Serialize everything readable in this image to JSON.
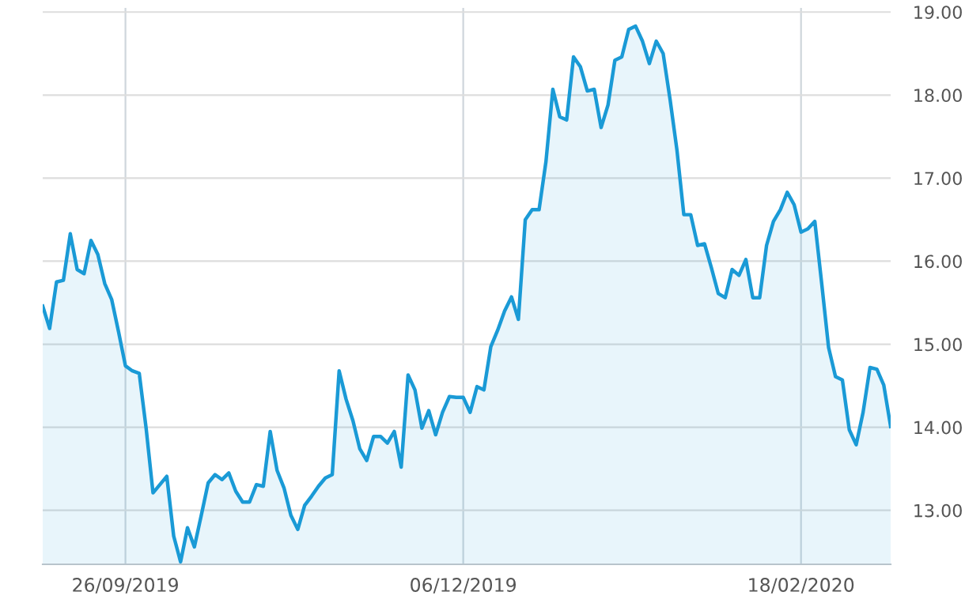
{
  "chart_data": {
    "type": "area",
    "categories": [
      null,
      null,
      null,
      null,
      null,
      null,
      null,
      null,
      null,
      null,
      null,
      null,
      "26/09/2019",
      null,
      null,
      null,
      null,
      null,
      null,
      null,
      null,
      null,
      null,
      null,
      null,
      null,
      null,
      null,
      null,
      null,
      null,
      null,
      null,
      null,
      null,
      null,
      null,
      null,
      null,
      null,
      null,
      null,
      null,
      null,
      null,
      null,
      null,
      null,
      null,
      null,
      null,
      null,
      null,
      null,
      null,
      null,
      null,
      null,
      null,
      null,
      null,
      "06/12/2019",
      null,
      null,
      null,
      null,
      null,
      null,
      null,
      null,
      null,
      null,
      null,
      null,
      null,
      null,
      null,
      null,
      null,
      null,
      null,
      null,
      null,
      null,
      null,
      null,
      null,
      null,
      null,
      null,
      null,
      null,
      null,
      null,
      null,
      null,
      null,
      null,
      null,
      null,
      null,
      null,
      null,
      null,
      null,
      null,
      null,
      null,
      null,
      null,
      "18/02/2020",
      null,
      null,
      null,
      null,
      null,
      null,
      null,
      null,
      null,
      null,
      null,
      null,
      null
    ],
    "series": [
      {
        "color": "#1a9ad6",
        "values": [
          15.46,
          15.19,
          15.75,
          15.77,
          16.33,
          15.9,
          15.85,
          16.25,
          16.08,
          15.73,
          15.54,
          15.15,
          14.74,
          14.68,
          14.65,
          13.99,
          13.21,
          13.31,
          13.41,
          12.69,
          12.38,
          12.79,
          12.56,
          12.94,
          13.33,
          13.43,
          13.37,
          13.45,
          13.23,
          13.1,
          13.1,
          13.31,
          13.29,
          13.95,
          13.48,
          13.27,
          12.94,
          12.77,
          13.06,
          13.17,
          13.29,
          13.39,
          13.43,
          14.68,
          14.34,
          14.08,
          13.74,
          13.6,
          13.89,
          13.89,
          13.81,
          13.95,
          13.52,
          14.63,
          14.45,
          13.99,
          14.2,
          13.91,
          14.18,
          14.37,
          14.36,
          14.36,
          14.18,
          14.49,
          14.45,
          14.97,
          15.17,
          15.4,
          15.57,
          15.3,
          16.5,
          16.62,
          16.62,
          17.2,
          18.07,
          17.74,
          17.7,
          18.46,
          18.34,
          18.05,
          18.07,
          17.61,
          17.88,
          18.42,
          18.46,
          18.79,
          18.83,
          18.65,
          18.38,
          18.65,
          18.5,
          17.95,
          17.34,
          16.56,
          16.56,
          16.19,
          16.21,
          15.92,
          15.61,
          15.56,
          15.9,
          15.83,
          16.02,
          15.56,
          15.56,
          16.19,
          16.48,
          16.62,
          16.83,
          16.68,
          16.35,
          16.39,
          16.48,
          15.73,
          14.96,
          14.61,
          14.57,
          13.97,
          13.79,
          14.18,
          14.72,
          14.7,
          14.51,
          14.01
        ]
      }
    ],
    "ylim": [
      12.35,
      19.05
    ],
    "yticks": [
      {
        "value": 13,
        "label": "13.00"
      },
      {
        "value": 14,
        "label": "14.00"
      },
      {
        "value": 15,
        "label": "15.00"
      },
      {
        "value": 16,
        "label": "16.00"
      },
      {
        "value": 17,
        "label": "17.00"
      },
      {
        "value": 18,
        "label": "18.00"
      },
      {
        "value": 19,
        "label": "19.00"
      }
    ],
    "grid": true
  }
}
